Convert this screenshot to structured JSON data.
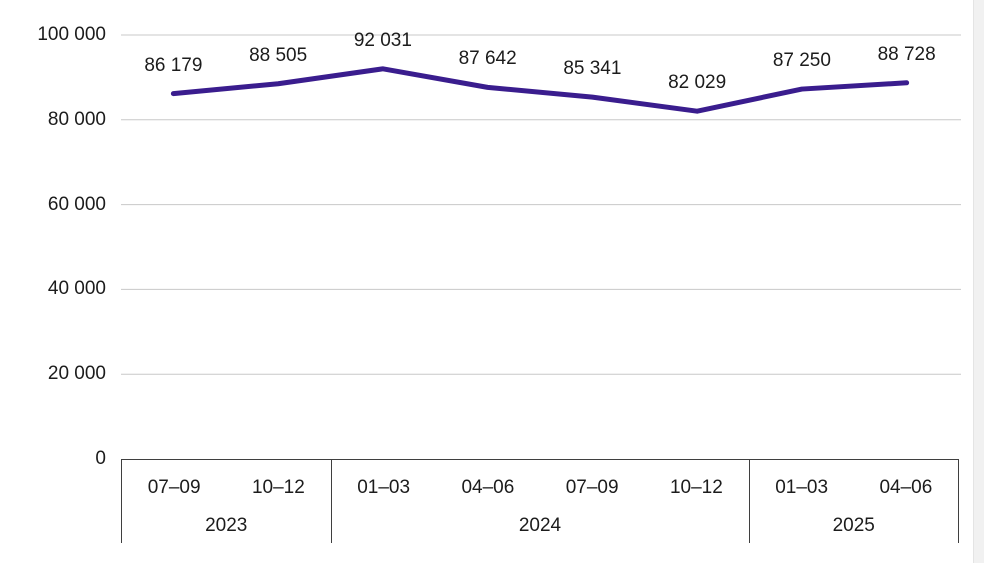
{
  "chart_data": {
    "type": "line",
    "grid": true,
    "legend": "none",
    "line_color": "#3a1d8e",
    "grid_color": "#c8c8c8",
    "axis_color": "#3f3f3f",
    "text_color": "#1c1c1c",
    "y_axis": {
      "min": 0,
      "max": 100000,
      "step": 20000,
      "tick_values": [
        0,
        20000,
        40000,
        60000,
        80000,
        100000
      ],
      "tick_labels": [
        "0",
        "20 000",
        "40 000",
        "60 000",
        "80 000",
        "100 000"
      ]
    },
    "x_axis": {
      "groups": [
        {
          "year": "2023",
          "quarters": [
            "07–09",
            "10–12"
          ]
        },
        {
          "year": "2024",
          "quarters": [
            "01–03",
            "04–06",
            "07–09",
            "10–12"
          ]
        },
        {
          "year": "2025",
          "quarters": [
            "01–03",
            "04–06"
          ]
        }
      ]
    },
    "series": [
      {
        "name": "quarterly-values",
        "values": [
          86179,
          88505,
          92031,
          87642,
          85341,
          82029,
          87250,
          88728
        ],
        "labels": [
          "86 179",
          "88 505",
          "92 031",
          "87 642",
          "85 341",
          "82 029",
          "87 250",
          "88 728"
        ]
      }
    ]
  }
}
